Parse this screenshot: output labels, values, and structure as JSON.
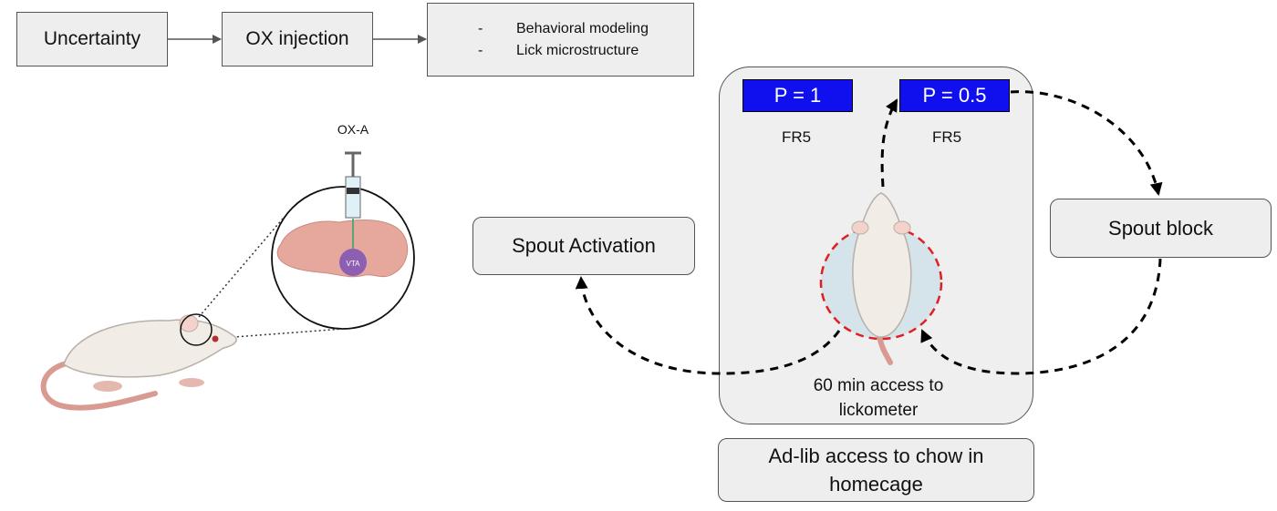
{
  "flow": {
    "step1": "Uncertainty",
    "step2": "OX injection",
    "outcomes": [
      "Behavioral modeling",
      "Lick microstructure"
    ]
  },
  "illustration": {
    "drug_label": "OX-A",
    "region_label": "VTA"
  },
  "session": {
    "left_prob": "P = 1",
    "right_prob": "P = 0.5",
    "left_schedule": "FR5",
    "right_schedule": "FR5",
    "access_line1": "60 min access to",
    "access_line2": "lickometer",
    "spout_activation": "Spout Activation",
    "spout_block": "Spout block",
    "homecage_line1": "Ad-lib access to chow in",
    "homecage_line2": "homecage"
  },
  "colors": {
    "box_fill": "#eeeeee",
    "prob_fill": "#1010ee",
    "dashed_ring": "#e02020",
    "rat_skin": "#f1ece6",
    "tail": "#d99a92",
    "vta": "#8d5fb2",
    "brain": "#e6a89c"
  }
}
